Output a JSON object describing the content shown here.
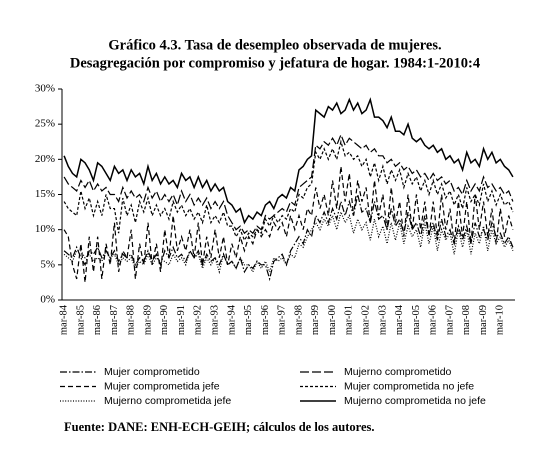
{
  "chart_data": {
    "type": "line",
    "title": "Gráfico 4.3. Tasa de desempleo observada de mujeres.",
    "subtitle": "Desagregación por compromiso y jefatura de hogar. 1984:1-2010:4",
    "source": "Fuente: DANE: ENH-ECH-GEIH; cálculos de los autores.",
    "categories": [
      "mar-84",
      null,
      null,
      null,
      "mar-85",
      null,
      null,
      null,
      "mar-86",
      null,
      null,
      null,
      "mar-87",
      null,
      null,
      null,
      "mar-88",
      null,
      null,
      null,
      "mar-89",
      null,
      null,
      null,
      "mar-90",
      null,
      null,
      null,
      "mar-91",
      null,
      null,
      null,
      "mar-92",
      null,
      null,
      null,
      "mar-93",
      null,
      null,
      null,
      "mar-94",
      null,
      null,
      null,
      "mar-95",
      null,
      null,
      null,
      "mar-96",
      null,
      null,
      null,
      "mar-97",
      null,
      null,
      null,
      "mar-98",
      null,
      null,
      null,
      "mar-99",
      null,
      null,
      null,
      "mar-00",
      null,
      null,
      null,
      "mar-01",
      null,
      null,
      null,
      "mar-02",
      null,
      null,
      null,
      "mar-03",
      null,
      null,
      null,
      "mar-04",
      null,
      null,
      null,
      "mar-05",
      null,
      null,
      null,
      "mar-06",
      null,
      null,
      null,
      "mar-07",
      null,
      null,
      null,
      "mar-08",
      null,
      null,
      null,
      "mar-09",
      null,
      null,
      null,
      "mar-10",
      null,
      null,
      null
    ],
    "ylim": [
      0,
      30
    ],
    "yticks": [
      {
        "value": 0,
        "label": "0%"
      },
      {
        "value": 5,
        "label": "5%"
      },
      {
        "value": 10,
        "label": "10%"
      },
      {
        "value": 15,
        "label": "15%"
      },
      {
        "value": 20,
        "label": "20%"
      },
      {
        "value": 25,
        "label": "25%"
      },
      {
        "value": 30,
        "label": "30%"
      }
    ],
    "grid": false,
    "legend": "bottom",
    "series": [
      {
        "name": "Mujer comprometido",
        "color": "#000000",
        "style": "dash-dot",
        "values": [
          7,
          6.5,
          6,
          7.5,
          6,
          5,
          7,
          6.5,
          7.5,
          6,
          7,
          6,
          7,
          5.5,
          6.5,
          6,
          6.5,
          5,
          6,
          5.5,
          7,
          5.5,
          6.5,
          5,
          7,
          6,
          7.5,
          6,
          6.5,
          5.5,
          7,
          6,
          7,
          5,
          6.5,
          5.5,
          6,
          5,
          6.5,
          5,
          5.5,
          4.5,
          6,
          4,
          5,
          4.5,
          5.5,
          5,
          5,
          3,
          5.5,
          6,
          6.5,
          5,
          7,
          8,
          9,
          8,
          10,
          9,
          12,
          11,
          12.5,
          11,
          13,
          11.5,
          14,
          12,
          14,
          12,
          15,
          12.5,
          13,
          11,
          14,
          11.5,
          12,
          10,
          13,
          10.5,
          11.5,
          9.5,
          12.5,
          10,
          11,
          9,
          12,
          9.5,
          11,
          8.5,
          11.5,
          9,
          10,
          8,
          10.5,
          8.5,
          10.5,
          8,
          11,
          9,
          10,
          8.5,
          11,
          9,
          9.5,
          8,
          9,
          7.5
        ]
      },
      {
        "name": "Mujerno comprometido",
        "color": "#000000",
        "style": "long-dash",
        "values": [
          17.5,
          16.5,
          16,
          15.5,
          17,
          16,
          17,
          15.5,
          16.5,
          15.5,
          16,
          15,
          15,
          14,
          16,
          14.5,
          15.5,
          14.5,
          15,
          14,
          16,
          14.5,
          15.5,
          14,
          15,
          14,
          15,
          13.5,
          15.5,
          14,
          15,
          13.5,
          14.5,
          13.5,
          14.5,
          13,
          14,
          13,
          14,
          12,
          11,
          10,
          10.5,
          9.5,
          10,
          9.5,
          10.5,
          10,
          12,
          11.5,
          12,
          12.5,
          13,
          12.5,
          14,
          13.5,
          16,
          16.5,
          17,
          17.5,
          22,
          21.5,
          22.5,
          22,
          23,
          22,
          23.5,
          22,
          23,
          22.5,
          22,
          21.5,
          22,
          21,
          21.5,
          20.5,
          20.5,
          19.5,
          20,
          19,
          19.5,
          18.5,
          19,
          18,
          18.5,
          17.5,
          18,
          17,
          18,
          17,
          17.5,
          16.5,
          17,
          15.5,
          16,
          15,
          17,
          15.5,
          16.5,
          15.5,
          17.5,
          16,
          16.5,
          15.5,
          16,
          15,
          15.5,
          14
        ]
      },
      {
        "name": "Mujer comprometida jefe",
        "color": "#000000",
        "style": "dash",
        "values": [
          10,
          9,
          5,
          3,
          8,
          2.5,
          9,
          4,
          9,
          3,
          8,
          5,
          11,
          4,
          7,
          6,
          10,
          3,
          8,
          5,
          11,
          5,
          8,
          4,
          10,
          6,
          12,
          7,
          9,
          7,
          10,
          6,
          11,
          5,
          9,
          6,
          10,
          6,
          9,
          5,
          8,
          6,
          9,
          7,
          9,
          8,
          10,
          9,
          10,
          9,
          11,
          10,
          11,
          9,
          12,
          10,
          12,
          10,
          13,
          12,
          16,
          13,
          15,
          12,
          17,
          13,
          19,
          14,
          18,
          12,
          17,
          14,
          16,
          11,
          17,
          12,
          15,
          10,
          16,
          11,
          14,
          9,
          15,
          10,
          15,
          10,
          14,
          9,
          14,
          9,
          15,
          10,
          13,
          8,
          14,
          9,
          14,
          8,
          15,
          10,
          14,
          9,
          13,
          8,
          13,
          9,
          12,
          10
        ]
      },
      {
        "name": "Mujer comprometida no jefe",
        "color": "#000000",
        "style": "short-dash",
        "values": [
          14,
          13,
          12.5,
          12,
          15.5,
          13,
          14.5,
          12,
          14,
          12,
          15,
          13,
          13,
          9.5,
          14.5,
          12,
          13.5,
          11,
          14,
          12.5,
          14.5,
          12,
          13.5,
          12,
          13,
          11.5,
          14,
          12.5,
          13.5,
          12,
          13,
          11.5,
          12.5,
          11,
          13.5,
          11,
          12,
          11,
          12.5,
          10.5,
          10.5,
          9,
          10,
          8.5,
          9.5,
          9,
          10,
          9.5,
          11.5,
          10.5,
          12,
          11,
          12,
          11.5,
          13,
          12.5,
          15,
          14.5,
          16,
          16.5,
          21,
          20,
          21.5,
          20,
          21.5,
          20,
          22.5,
          20.5,
          21,
          20,
          20.5,
          19,
          20,
          17.5,
          19.5,
          17,
          19,
          16.5,
          18.5,
          17,
          18.5,
          16,
          18,
          16.5,
          17.5,
          15.5,
          17,
          15,
          17,
          15,
          16.5,
          14.5,
          15.5,
          13.5,
          15,
          13,
          16,
          14,
          15,
          13.5,
          16.5,
          14,
          15.5,
          13.5,
          15,
          13.5,
          14,
          12.5
        ]
      },
      {
        "name": "Mujerno comprometida jefe",
        "color": "#000000",
        "style": "dot",
        "values": [
          6.5,
          6,
          5.5,
          7,
          7,
          6,
          6.5,
          5.5,
          6,
          5.5,
          7,
          6,
          6.5,
          5,
          6,
          5.5,
          6,
          4.5,
          5.5,
          5,
          6.5,
          5,
          6,
          5.5,
          5.5,
          5,
          6.5,
          5.5,
          6,
          5,
          7,
          6,
          6.5,
          4.5,
          6,
          5,
          6,
          4,
          6.5,
          5,
          5.5,
          4.5,
          6,
          5,
          5,
          4,
          5.5,
          4.5,
          5.5,
          4,
          6,
          5.5,
          6,
          5,
          6.5,
          6,
          8,
          7.5,
          9,
          10,
          11,
          10,
          11.5,
          10.5,
          12,
          10,
          12.5,
          11,
          12,
          9.5,
          11.5,
          10,
          11,
          8.5,
          11.5,
          9,
          10.5,
          8,
          11,
          8.5,
          11,
          8,
          10.5,
          9,
          10,
          7.5,
          11,
          8,
          10.5,
          7,
          10,
          8.5,
          9.5,
          6.5,
          10,
          7.5,
          10,
          6.5,
          9.5,
          8,
          10.5,
          7,
          10,
          8,
          9,
          7.5,
          8.5,
          7
        ]
      },
      {
        "name": "Mujerno comprometida no jefe",
        "color": "#000000",
        "style": "solid",
        "values": [
          20.5,
          19,
          18,
          17.5,
          20,
          19.5,
          18.5,
          17,
          19.5,
          19,
          18,
          17,
          19,
          18,
          18.5,
          17,
          18.5,
          17.5,
          18,
          16.5,
          19,
          17,
          18,
          16.5,
          17.5,
          16.5,
          17,
          16,
          18,
          17,
          17.5,
          16,
          17.5,
          16,
          17,
          15.5,
          16.5,
          15.5,
          16,
          14,
          13.5,
          12.5,
          13,
          11,
          12,
          11.5,
          12.5,
          12,
          13.5,
          14,
          13,
          14.5,
          15,
          14.5,
          16,
          15.5,
          18.5,
          19,
          20,
          20.5,
          27,
          26.5,
          26,
          27.5,
          27,
          28,
          26.5,
          27,
          28.5,
          27,
          28,
          26.5,
          27,
          28.5,
          26,
          26,
          25.5,
          24.5,
          26,
          24,
          24,
          23.5,
          25,
          23,
          22.5,
          23,
          22,
          21.5,
          22,
          21,
          21.5,
          20,
          20.5,
          19.5,
          20,
          18.5,
          21,
          19.5,
          20,
          19,
          21.5,
          20,
          21,
          19.5,
          20,
          19,
          18.5,
          17.5
        ]
      }
    ]
  }
}
